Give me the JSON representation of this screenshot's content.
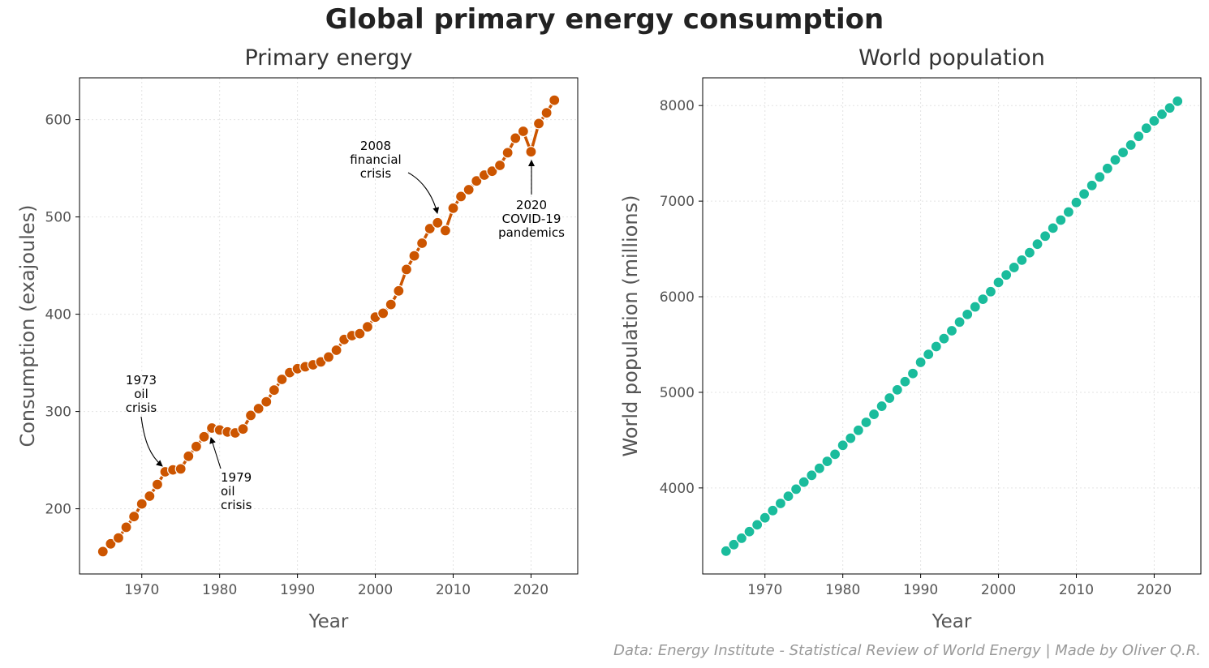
{
  "figure": {
    "suptitle": "Global primary energy consumption",
    "credit": "Data: Energy Institute - Statistical Review of World Energy | Made by Oliver Q.R."
  },
  "chart_data": [
    {
      "type": "line",
      "title": "Primary energy",
      "xlabel": "Year",
      "ylabel": "Consumption (exajoules)",
      "xlim": [
        1962,
        2026
      ],
      "ylim": [
        133,
        643
      ],
      "xticks": [
        1970,
        1980,
        1990,
        2000,
        2010,
        2020
      ],
      "yticks": [
        200,
        300,
        400,
        500,
        600
      ],
      "grid": true,
      "color": "#cc5500",
      "x": [
        1965,
        1966,
        1967,
        1968,
        1969,
        1970,
        1971,
        1972,
        1973,
        1974,
        1975,
        1976,
        1977,
        1978,
        1979,
        1980,
        1981,
        1982,
        1983,
        1984,
        1985,
        1986,
        1987,
        1988,
        1989,
        1990,
        1991,
        1992,
        1993,
        1994,
        1995,
        1996,
        1997,
        1998,
        1999,
        2000,
        2001,
        2002,
        2003,
        2004,
        2005,
        2006,
        2007,
        2008,
        2009,
        2010,
        2011,
        2012,
        2013,
        2014,
        2015,
        2016,
        2017,
        2018,
        2019,
        2020,
        2021,
        2022,
        2023
      ],
      "y": [
        156,
        164,
        170,
        181,
        192,
        205,
        213,
        225,
        238,
        240,
        241,
        254,
        264,
        274,
        283,
        281,
        279,
        278,
        282,
        296,
        303,
        310,
        322,
        333,
        340,
        344,
        346,
        348,
        351,
        356,
        363,
        374,
        378,
        380,
        387,
        397,
        401,
        410,
        424,
        446,
        460,
        473,
        488,
        494,
        486,
        509,
        521,
        528,
        537,
        543,
        547,
        553,
        566,
        581,
        588,
        567,
        596,
        607,
        620
      ],
      "annotations": [
        {
          "text": "1973\noil\ncrisis",
          "x": 1973,
          "y": 238
        },
        {
          "text": "1979\noil\ncrisis",
          "x": 1979,
          "y": 283
        },
        {
          "text": "2008\nfinancial\ncrisis",
          "x": 2008,
          "y": 494
        },
        {
          "text": "2020\nCOVID-19\npandemics",
          "x": 2020,
          "y": 567
        }
      ]
    },
    {
      "type": "scatter",
      "title": "World population",
      "xlabel": "Year",
      "ylabel": "World population (millions)",
      "xlim": [
        1962,
        2026
      ],
      "ylim": [
        3100,
        8290
      ],
      "xticks": [
        1970,
        1980,
        1990,
        2000,
        2010,
        2020
      ],
      "yticks": [
        4000,
        5000,
        6000,
        7000,
        8000
      ],
      "grid": true,
      "color": "#1abc9c",
      "x": [
        1965,
        1966,
        1967,
        1968,
        1969,
        1970,
        1971,
        1972,
        1973,
        1974,
        1975,
        1976,
        1977,
        1978,
        1979,
        1980,
        1981,
        1982,
        1983,
        1984,
        1985,
        1986,
        1987,
        1988,
        1989,
        1990,
        1991,
        1992,
        1993,
        1994,
        1995,
        1996,
        1997,
        1998,
        1999,
        2000,
        2001,
        2002,
        2003,
        2004,
        2005,
        2006,
        2007,
        2008,
        2009,
        2010,
        2011,
        2012,
        2013,
        2014,
        2015,
        2016,
        2017,
        2018,
        2019,
        2020,
        2021,
        2022,
        2023
      ],
      "y": [
        3339,
        3407,
        3474,
        3543,
        3614,
        3688,
        3763,
        3838,
        3913,
        3987,
        4061,
        4132,
        4205,
        4278,
        4352,
        4446,
        4520,
        4603,
        4686,
        4770,
        4855,
        4940,
        5026,
        5112,
        5197,
        5314,
        5397,
        5479,
        5562,
        5644,
        5735,
        5815,
        5894,
        5974,
        6053,
        6150,
        6228,
        6306,
        6383,
        6461,
        6550,
        6634,
        6718,
        6802,
        6886,
        6986,
        7075,
        7164,
        7253,
        7342,
        7432,
        7509,
        7587,
        7678,
        7763,
        7840,
        7909,
        7975,
        8045
      ]
    }
  ]
}
